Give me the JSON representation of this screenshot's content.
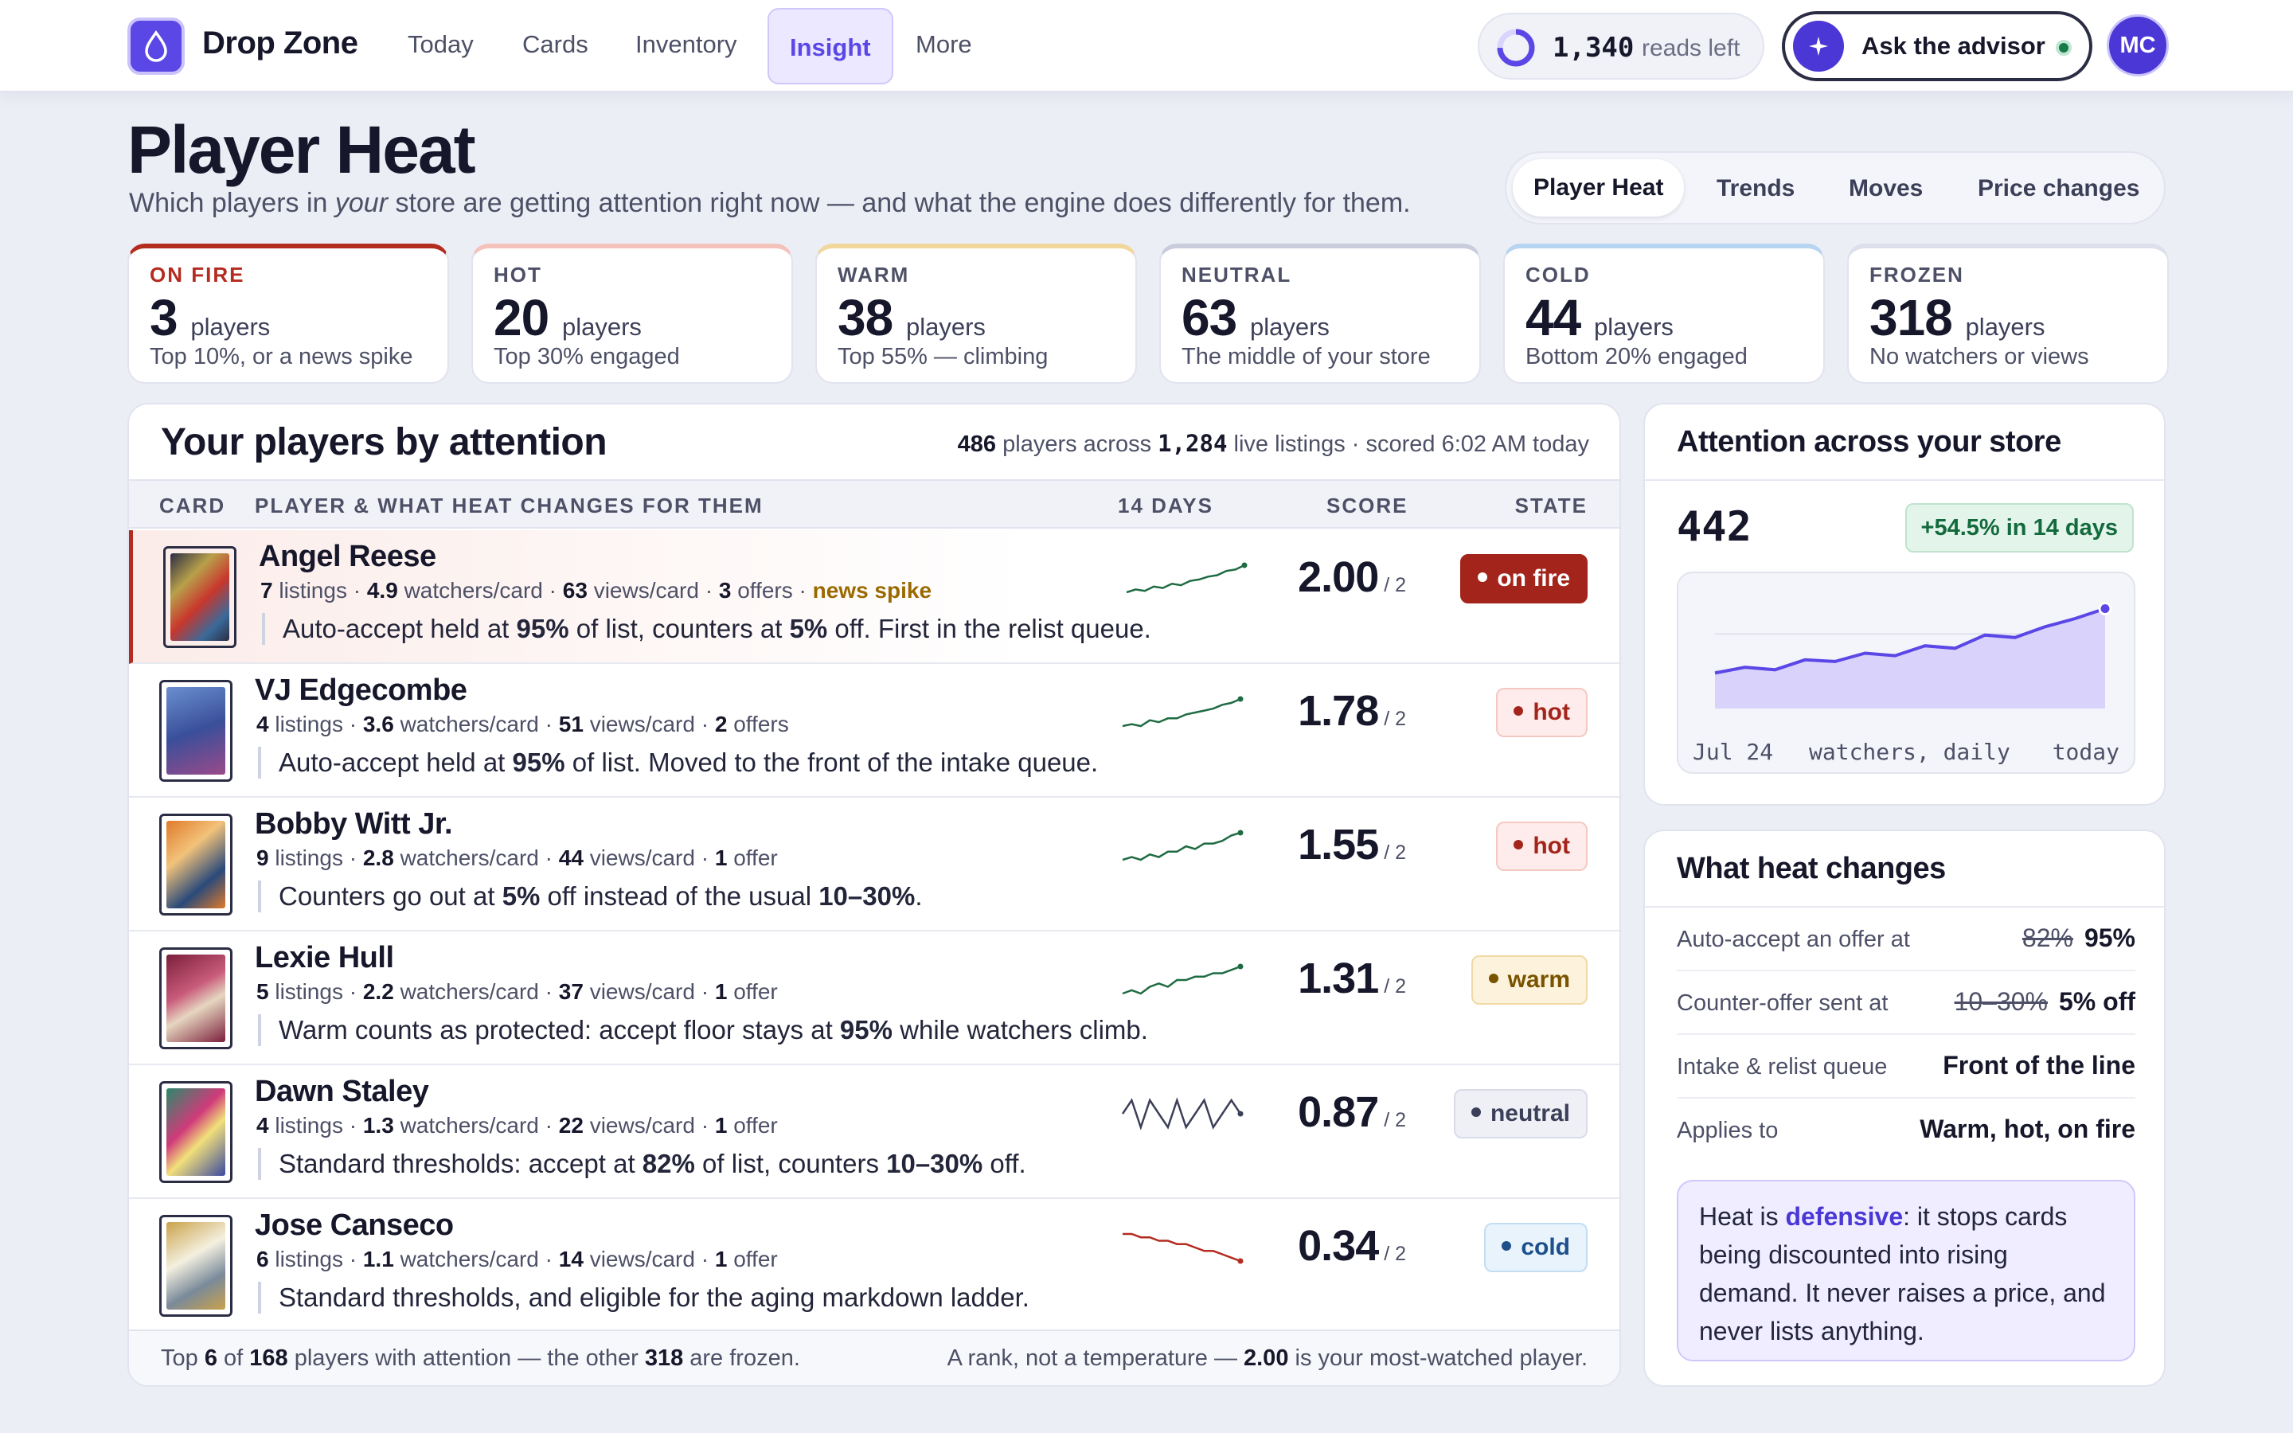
{
  "nav": {
    "brand": "Drop Zone",
    "links": [
      "Today",
      "Cards",
      "Inventory",
      "Insight",
      "More"
    ],
    "active": "Insight",
    "reads_count": "1,340",
    "reads_label": "reads left",
    "advisor_label": "Ask the advisor",
    "avatar_initials": "MC"
  },
  "header": {
    "title": "Player Heat",
    "subtitle_pre": "Which players in ",
    "subtitle_em": "your",
    "subtitle_post": " store are getting attention right now — and what the engine does differently for them.",
    "tabs": [
      "Player Heat",
      "Trends",
      "Moves",
      "Price changes"
    ],
    "active_tab": "Player Heat"
  },
  "heat_levels": [
    {
      "label": "ON FIRE",
      "count": "3",
      "unit": "players",
      "desc": "Top 10%, or a news spike",
      "color": "#b42b1f"
    },
    {
      "label": "HOT",
      "count": "20",
      "unit": "players",
      "desc": "Top 30% engaged",
      "color": "#f3c2bb"
    },
    {
      "label": "WARM",
      "count": "38",
      "unit": "players",
      "desc": "Top 55% — climbing",
      "color": "#f1d79c"
    },
    {
      "label": "NEUTRAL",
      "count": "63",
      "unit": "players",
      "desc": "The middle of your store",
      "color": "#c9ccdb"
    },
    {
      "label": "COLD",
      "count": "44",
      "unit": "players",
      "desc": "Bottom 20% engaged",
      "color": "#b7d5f0"
    },
    {
      "label": "FROZEN",
      "count": "318",
      "unit": "players",
      "desc": "No watchers or views",
      "color": "#dde0ea"
    }
  ],
  "table": {
    "title": "Your players by attention",
    "meta": {
      "players": "486",
      "players_label": " players across ",
      "listings": "1,284",
      "listings_label": " live listings · scored 6:02 AM today"
    },
    "columns": {
      "card": "CARD",
      "player": "PLAYER & WHAT HEAT CHANGES FOR THEM",
      "days": "14 DAYS",
      "score": "SCORE",
      "state": "STATE"
    },
    "rows": [
      {
        "name": "Angel Reese",
        "listings": "7",
        "watchers": "4.9",
        "views": "63",
        "offers": "3",
        "offers_label": "offers",
        "spike": "news spike",
        "effect_html": "Auto-accept held at <b>95%</b> of list, counters at <b>5%</b> off. First in the relist queue.",
        "score": "2.00",
        "state": "on fire",
        "state_class": "st-fire",
        "spark_color": "#1f6b43",
        "spark": [
          3,
          3.2,
          3.1,
          3.4,
          3.3,
          3.6,
          3.5,
          3.8,
          3.9,
          4.1,
          4.2,
          4.5,
          4.6,
          4.9
        ]
      },
      {
        "name": "VJ Edgecombe",
        "listings": "4",
        "watchers": "3.6",
        "views": "51",
        "offers": "2",
        "offers_label": "offers",
        "spike": "",
        "effect_html": "Auto-accept held at <b>95%</b> of list. Moved to the front of the intake queue.",
        "score": "1.78",
        "state": "hot",
        "state_class": "st-hot",
        "spark_color": "#1f6b43",
        "spark": [
          2.2,
          2.3,
          2.2,
          2.5,
          2.4,
          2.6,
          2.6,
          2.8,
          2.9,
          3.0,
          3.1,
          3.3,
          3.4,
          3.6
        ]
      },
      {
        "name": "Bobby Witt Jr.",
        "listings": "9",
        "watchers": "2.8",
        "views": "44",
        "offers": "1",
        "offers_label": "offer",
        "spike": "",
        "effect_html": "Counters go out at <b>5%</b> off instead of the usual <b>10–30%</b>.",
        "score": "1.55",
        "state": "hot",
        "state_class": "st-hot",
        "spark_color": "#1f6b43",
        "spark": [
          1.8,
          1.9,
          1.8,
          2.0,
          1.9,
          2.1,
          2.1,
          2.3,
          2.2,
          2.4,
          2.4,
          2.5,
          2.7,
          2.8
        ]
      },
      {
        "name": "Lexie Hull",
        "listings": "5",
        "watchers": "2.2",
        "views": "37",
        "offers": "1",
        "offers_label": "offer",
        "spike": "",
        "effect_html": "Warm counts as protected: accept floor stays at <b>95%</b> while watchers climb.",
        "score": "1.31",
        "state": "warm",
        "state_class": "st-warm",
        "spark_color": "#1f6b43",
        "spark": [
          1.4,
          1.5,
          1.4,
          1.6,
          1.7,
          1.6,
          1.8,
          1.8,
          1.9,
          1.9,
          2.0,
          2.0,
          2.1,
          2.2
        ]
      },
      {
        "name": "Dawn Staley",
        "listings": "4",
        "watchers": "1.3",
        "views": "22",
        "offers": "1",
        "offers_label": "offer",
        "spike": "",
        "effect_html": "Standard thresholds: accept at <b>82%</b> of list, counters <b>10–30%</b> off.",
        "score": "0.87",
        "state": "neutral",
        "state_class": "st-neutral",
        "spark_color": "#3c3f58",
        "spark": [
          1.3,
          1.4,
          1.2,
          1.4,
          1.3,
          1.2,
          1.4,
          1.2,
          1.3,
          1.4,
          1.2,
          1.3,
          1.4,
          1.3
        ]
      },
      {
        "name": "Jose Canseco",
        "listings": "6",
        "watchers": "1.1",
        "views": "14",
        "offers": "1",
        "offers_label": "offer",
        "spike": "",
        "effect_html": "Standard thresholds, and eligible for the aging markdown ladder.",
        "score": "0.34",
        "state": "cold",
        "state_class": "st-cold",
        "spark_color": "#b42b1f",
        "spark": [
          1.9,
          1.9,
          1.8,
          1.8,
          1.7,
          1.7,
          1.6,
          1.6,
          1.5,
          1.4,
          1.4,
          1.3,
          1.2,
          1.1
        ]
      }
    ],
    "stat_labels": {
      "listings": "listings",
      "watchers": "watchers/card",
      "views": "views/card"
    },
    "score_denominator": "/ 2",
    "footer_left": {
      "pre": "Top ",
      "shown": "6",
      "mid": " of ",
      "total": "168",
      "mid2": " players with attention — the other ",
      "frozen": "318",
      "post": " are frozen."
    },
    "footer_right": {
      "pre": "A rank, not a temperature — ",
      "top": "2.00",
      "post": " is your most-watched player."
    }
  },
  "attention": {
    "title": "Attention across your store",
    "value": "442",
    "growth": "+54.5% in 14 days",
    "x_start": "Jul 24",
    "x_mid": "watchers, daily",
    "x_end": "today"
  },
  "chart_data": {
    "type": "area",
    "title": "Attention across your store",
    "xlabel": "watchers, daily",
    "x": [
      "Jul 24",
      "",
      "",
      "",
      "",
      "",
      "",
      "",
      "",
      "",
      "",
      "",
      "",
      "today"
    ],
    "values": [
      286,
      300,
      294,
      318,
      314,
      334,
      328,
      352,
      346,
      378,
      372,
      398,
      418,
      442
    ],
    "ylim": [
      200,
      470
    ],
    "grid": true
  },
  "heat_changes": {
    "title": "What heat changes",
    "rules": [
      {
        "label": "Auto-accept an offer at",
        "old": "82%",
        "new": "95%"
      },
      {
        "label": "Counter-offer sent at",
        "old": "10–30%",
        "new": "5% off"
      },
      {
        "label": "Intake & relist queue",
        "old": "",
        "new": "Front of the line"
      },
      {
        "label": "Applies to",
        "old": "",
        "new": "Warm, hot, on fire"
      }
    ],
    "note_pre": "Heat is ",
    "note_em": "defensive",
    "note_post": ": it stops cards being discounted into rising demand. It never raises a price, and never lists anything."
  },
  "colors": {
    "accent": "#5b47e6",
    "fire": "#b42b1f",
    "positive": "#1f6b43"
  }
}
